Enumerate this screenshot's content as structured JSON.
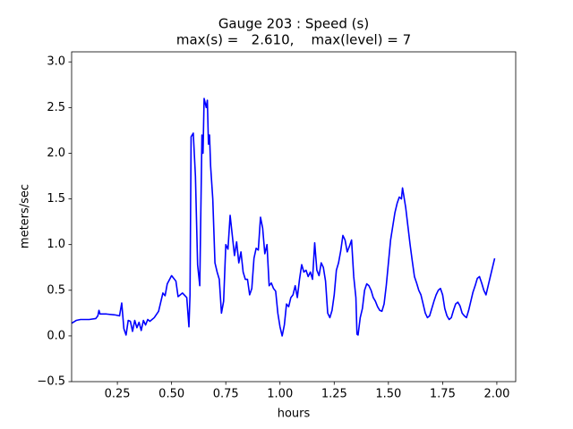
{
  "chart_data": {
    "type": "line",
    "title": "Gauge 203 : Speed (s)",
    "subtitle": "max(s) =   2.610,    max(level) = 7",
    "xlabel": "hours",
    "ylabel": "meters/sec",
    "color": "#0000ff",
    "xlim": [
      0.039,
      2.087
    ],
    "ylim": [
      -0.5,
      3.11
    ],
    "xticks": [
      0.25,
      {
        "value": 0.5,
        "label": "0.50"
      },
      0.75,
      {
        "value": 1,
        "label": "1.00"
      },
      1.25,
      {
        "value": 1.5,
        "label": "1.50"
      },
      1.75,
      {
        "value": 2,
        "label": "2.00"
      }
    ],
    "yticks": [
      {
        "value": -0.5,
        "label": "−0.5"
      },
      {
        "value": 0,
        "label": "0.0"
      },
      0.5,
      {
        "value": 1,
        "label": "1.0"
      },
      1.5,
      {
        "value": 2,
        "label": "2.0"
      },
      2.5,
      {
        "value": 3,
        "label": "3.0"
      }
    ],
    "x": [
      0.04,
      0.06,
      0.08,
      0.12,
      0.15,
      0.16,
      0.165,
      0.17,
      0.2,
      0.24,
      0.26,
      0.27,
      0.28,
      0.29,
      0.3,
      0.31,
      0.32,
      0.33,
      0.34,
      0.35,
      0.36,
      0.37,
      0.38,
      0.39,
      0.4,
      0.42,
      0.44,
      0.46,
      0.47,
      0.48,
      0.5,
      0.52,
      0.53,
      0.55,
      0.57,
      0.58,
      0.585,
      0.59,
      0.6,
      0.61,
      0.62,
      0.63,
      0.64,
      0.645,
      0.65,
      0.66,
      0.665,
      0.67,
      0.675,
      0.68,
      0.69,
      0.7,
      0.71,
      0.72,
      0.73,
      0.74,
      0.75,
      0.76,
      0.77,
      0.78,
      0.79,
      0.8,
      0.81,
      0.82,
      0.83,
      0.84,
      0.85,
      0.86,
      0.87,
      0.88,
      0.89,
      0.9,
      0.91,
      0.92,
      0.93,
      0.94,
      0.95,
      0.96,
      0.97,
      0.98,
      0.99,
      1.0,
      1.01,
      1.02,
      1.03,
      1.04,
      1.05,
      1.06,
      1.07,
      1.08,
      1.09,
      1.1,
      1.11,
      1.12,
      1.13,
      1.14,
      1.15,
      1.16,
      1.17,
      1.18,
      1.19,
      1.2,
      1.21,
      1.22,
      1.23,
      1.24,
      1.25,
      1.26,
      1.27,
      1.28,
      1.29,
      1.3,
      1.31,
      1.32,
      1.33,
      1.34,
      1.35,
      1.355,
      1.36,
      1.37,
      1.38,
      1.39,
      1.4,
      1.41,
      1.42,
      1.43,
      1.44,
      1.45,
      1.46,
      1.47,
      1.48,
      1.49,
      1.5,
      1.51,
      1.52,
      1.53,
      1.54,
      1.55,
      1.56,
      1.565,
      1.57,
      1.58,
      1.59,
      1.6,
      1.61,
      1.62,
      1.63,
      1.64,
      1.65,
      1.66,
      1.67,
      1.68,
      1.69,
      1.7,
      1.71,
      1.72,
      1.73,
      1.74,
      1.75,
      1.76,
      1.77,
      1.78,
      1.79,
      1.8,
      1.81,
      1.82,
      1.83,
      1.84,
      1.85,
      1.86,
      1.87,
      1.88,
      1.89,
      1.9,
      1.91,
      1.92,
      1.93,
      1.94,
      1.95,
      1.96,
      1.97,
      1.98,
      1.99
    ],
    "values": [
      0.14,
      0.17,
      0.18,
      0.18,
      0.19,
      0.22,
      0.28,
      0.24,
      0.24,
      0.23,
      0.22,
      0.36,
      0.08,
      0.01,
      0.17,
      0.16,
      0.05,
      0.17,
      0.09,
      0.15,
      0.06,
      0.17,
      0.12,
      0.18,
      0.16,
      0.2,
      0.27,
      0.47,
      0.44,
      0.57,
      0.66,
      0.6,
      0.43,
      0.47,
      0.42,
      0.1,
      0.45,
      2.18,
      2.22,
      1.75,
      0.78,
      0.55,
      2.2,
      2.0,
      2.6,
      2.5,
      2.58,
      2.1,
      2.2,
      1.86,
      1.5,
      0.8,
      0.7,
      0.62,
      0.25,
      0.38,
      1.0,
      0.95,
      1.32,
      1.1,
      0.88,
      1.03,
      0.8,
      0.92,
      0.7,
      0.62,
      0.62,
      0.45,
      0.52,
      0.85,
      0.96,
      0.94,
      1.3,
      1.18,
      0.9,
      1.0,
      0.55,
      0.58,
      0.52,
      0.49,
      0.25,
      0.1,
      0.0,
      0.12,
      0.35,
      0.32,
      0.42,
      0.45,
      0.55,
      0.42,
      0.62,
      0.78,
      0.7,
      0.72,
      0.65,
      0.7,
      0.62,
      1.02,
      0.72,
      0.66,
      0.8,
      0.75,
      0.6,
      0.25,
      0.2,
      0.28,
      0.45,
      0.72,
      0.8,
      0.93,
      1.1,
      1.05,
      0.92,
      0.98,
      1.05,
      0.65,
      0.42,
      0.02,
      0.01,
      0.2,
      0.3,
      0.5,
      0.57,
      0.55,
      0.5,
      0.42,
      0.38,
      0.32,
      0.28,
      0.27,
      0.35,
      0.55,
      0.8,
      1.05,
      1.2,
      1.35,
      1.45,
      1.52,
      1.5,
      1.62,
      1.55,
      1.4,
      1.2,
      1.0,
      0.82,
      0.65,
      0.58,
      0.5,
      0.45,
      0.35,
      0.25,
      0.2,
      0.22,
      0.3,
      0.38,
      0.45,
      0.5,
      0.52,
      0.45,
      0.3,
      0.22,
      0.18,
      0.2,
      0.28,
      0.35,
      0.37,
      0.33,
      0.25,
      0.22,
      0.2,
      0.28,
      0.38,
      0.48,
      0.55,
      0.63,
      0.65,
      0.58,
      0.5,
      0.45,
      0.55,
      0.65,
      0.75,
      0.85
    ]
  }
}
